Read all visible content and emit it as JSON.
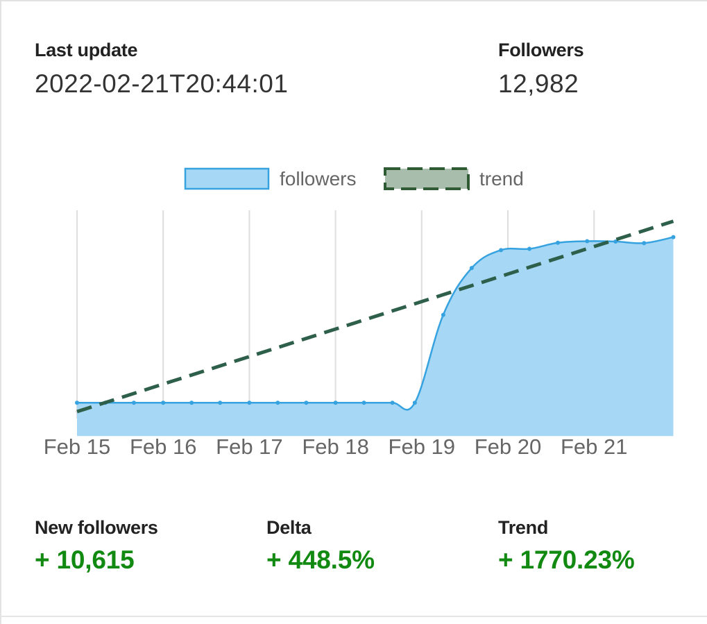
{
  "header": {
    "last_update_label": "Last update",
    "last_update_value": "2022-02-21T20:44:01",
    "followers_label": "Followers",
    "followers_value": "12,982"
  },
  "footer": {
    "new_followers_label": "New followers",
    "new_followers_value": "+ 10,615",
    "delta_label": "Delta",
    "delta_value": "+ 448.5%",
    "trend_label": "Trend",
    "trend_value": "+ 1770.23%"
  },
  "colors": {
    "area_fill": "#a6d8f6",
    "area_line": "#36a2e0",
    "trend_line": "#2e5f4b",
    "trend_legend_fill": "#a9bdac",
    "trend_legend_border": "#2e5a34",
    "grid": "#dedede",
    "tick_text": "#666666",
    "positive": "#128a12"
  },
  "chart_data": {
    "type": "area",
    "legend_position": "top",
    "grid": true,
    "x_ticks": [
      0,
      1,
      2,
      3,
      4,
      5,
      6
    ],
    "x_tick_labels": [
      "Feb 15",
      "Feb 16",
      "Feb 17",
      "Feb 18",
      "Feb 19",
      "Feb 20",
      "Feb 21"
    ],
    "ylim": [
      1800,
      14700
    ],
    "series": [
      {
        "name": "followers",
        "kind": "area",
        "x": [
          0,
          0.33,
          0.66,
          1.0,
          1.33,
          1.66,
          2.0,
          2.33,
          2.66,
          3.0,
          3.33,
          3.66,
          3.92,
          4.25,
          4.58,
          4.92,
          5.25,
          5.58,
          5.92,
          6.25,
          6.58,
          6.92
        ],
        "y": [
          2367,
          2367,
          2367,
          2367,
          2367,
          2367,
          2367,
          2367,
          2367,
          2367,
          2367,
          2367,
          2367,
          8000,
          11000,
          12150,
          12230,
          12620,
          12720,
          12700,
          12600,
          12982
        ]
      },
      {
        "name": "trend",
        "kind": "line",
        "style": "dashed",
        "x": [
          0,
          6.92
        ],
        "y": [
          1800,
          14000
        ]
      }
    ]
  }
}
